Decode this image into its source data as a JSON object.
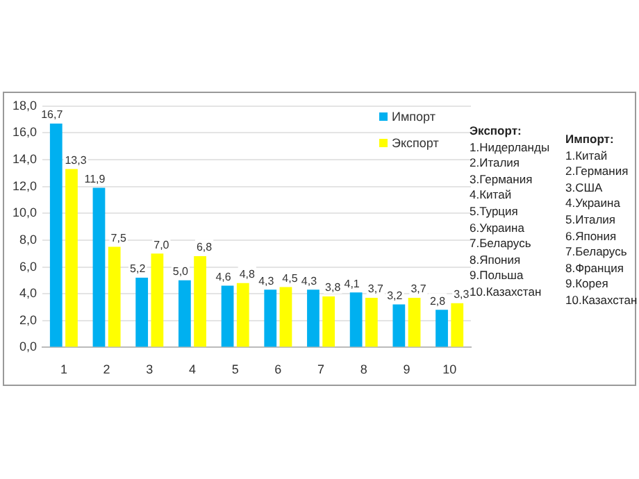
{
  "chart_data": {
    "type": "bar",
    "categories": [
      "1",
      "2",
      "3",
      "4",
      "5",
      "6",
      "7",
      "8",
      "9",
      "10"
    ],
    "series": [
      {
        "name": "Импорт",
        "color": "#00b0f0",
        "values": [
          16.7,
          11.9,
          5.2,
          5.0,
          4.6,
          4.3,
          4.3,
          4.1,
          3.2,
          2.8
        ],
        "value_labels": [
          "16,7",
          "11,9",
          "5,2",
          "5,0",
          "4,6",
          "4,3",
          "4,3",
          "4,1",
          "3,2",
          "2,8"
        ]
      },
      {
        "name": "Экспорт",
        "color": "#ffff00",
        "values": [
          13.3,
          7.5,
          7.0,
          6.8,
          4.8,
          4.5,
          3.8,
          3.7,
          3.7,
          3.3
        ],
        "value_labels": [
          "13,3",
          "7,5",
          "7,0",
          "6,8",
          "4,8",
          "4,5",
          "3,8",
          "3,7",
          "3,7",
          "3,3"
        ]
      }
    ],
    "ylim": [
      0,
      18
    ],
    "yticks": [
      {
        "value": 0,
        "label": "0,0"
      },
      {
        "value": 2,
        "label": "2,0"
      },
      {
        "value": 4,
        "label": "4,0"
      },
      {
        "value": 6,
        "label": "6,0"
      },
      {
        "value": 8,
        "label": "8,0"
      },
      {
        "value": 10,
        "label": "10,0"
      },
      {
        "value": 12,
        "label": "12,0"
      },
      {
        "value": 14,
        "label": "14,0"
      },
      {
        "value": 16,
        "label": "16,0"
      },
      {
        "value": 18,
        "label": "18,0"
      }
    ],
    "grid": "y",
    "legend": "top right",
    "annotations": [
      "Экспорт:\n1.Нидерланды\n2.Италия\n3.Германия\n4.Китай\n5.Турция\n6.Украина\n7.Беларусь\n8.Япония\n9.Польша\n10.Казахстан",
      "Импорт:\n1.Китай\n2.Германия\n3.США\n4.Украина\n5.Италия\n6.Япония\n7.Беларусь\n8.Франция\n9.Корея\n10.Казахстан"
    ]
  }
}
